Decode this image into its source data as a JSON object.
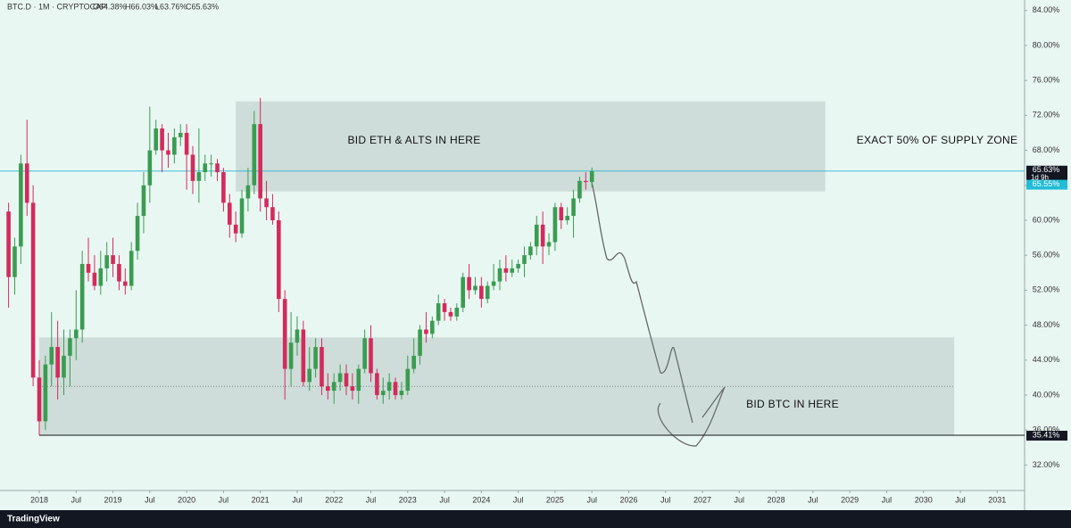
{
  "chart_data": {
    "type": "candlestick",
    "title": "BTC.D · 1M · CRYPTOCAP",
    "ohlc_labels": [
      "O64.38%",
      "H66.03%",
      "L63.76%",
      "C65.63%"
    ],
    "footer_brand": "TradingView",
    "up_color": "#3a9c50",
    "down_color": "#d42a5c",
    "x": [
      "2017-08",
      "2017-09",
      "2017-10",
      "2017-11",
      "2017-12",
      "2018-01",
      "2018-02",
      "2018-03",
      "2018-04",
      "2018-05",
      "2018-06",
      "2018-07",
      "2018-08",
      "2018-09",
      "2018-10",
      "2018-11",
      "2018-12",
      "2019-01",
      "2019-02",
      "2019-03",
      "2019-04",
      "2019-05",
      "2019-06",
      "2019-07",
      "2019-08",
      "2019-09",
      "2019-10",
      "2019-11",
      "2019-12",
      "2020-01",
      "2020-02",
      "2020-03",
      "2020-04",
      "2020-05",
      "2020-06",
      "2020-07",
      "2020-08",
      "2020-09",
      "2020-10",
      "2020-11",
      "2020-12",
      "2021-01",
      "2021-02",
      "2021-03",
      "2021-04",
      "2021-05",
      "2021-06",
      "2021-07",
      "2021-08",
      "2021-09",
      "2021-10",
      "2021-11",
      "2021-12",
      "2022-01",
      "2022-02",
      "2022-03",
      "2022-04",
      "2022-05",
      "2022-06",
      "2022-07",
      "2022-08",
      "2022-09",
      "2022-10",
      "2022-11",
      "2022-12",
      "2023-01",
      "2023-02",
      "2023-03",
      "2023-04",
      "2023-05",
      "2023-06",
      "2023-07",
      "2023-08",
      "2023-09",
      "2023-10",
      "2023-11",
      "2023-12",
      "2024-01",
      "2024-02",
      "2024-03",
      "2024-04",
      "2024-05",
      "2024-06",
      "2024-07",
      "2024-08",
      "2024-09",
      "2024-10",
      "2024-11",
      "2024-12",
      "2025-01",
      "2025-02",
      "2025-03",
      "2025-04",
      "2025-05",
      "2025-06",
      "2025-07"
    ],
    "open": [
      61.0,
      53.5,
      57.0,
      66.5,
      62.0,
      42.0,
      37.0,
      43.5,
      45.5,
      42.0,
      44.5,
      46.5,
      47.5,
      55.0,
      54.0,
      52.5,
      54.5,
      56.0,
      55.0,
      53.0,
      52.5,
      56.5,
      60.5,
      64.0,
      68.0,
      70.5,
      68.0,
      67.5,
      69.5,
      70.0,
      67.5,
      64.5,
      65.5,
      66.5,
      66.5,
      65.5,
      62.0,
      59.5,
      58.5,
      62.5,
      64.0,
      71.0,
      62.5,
      61.5,
      60.0,
      51.0,
      43.0,
      46.0,
      47.5,
      41.5,
      43.0,
      45.5,
      41.0,
      40.5,
      41.5,
      42.5,
      41.0,
      40.5,
      43.0,
      46.5,
      42.5,
      40.0,
      40.5,
      41.5,
      40.0,
      40.5,
      43.0,
      44.5,
      47.5,
      47.0,
      48.5,
      50.5,
      49.5,
      49.0,
      50.0,
      53.5,
      52.0,
      52.5,
      51.0,
      52.5,
      53.0,
      54.5,
      54.0,
      54.5,
      55.0,
      56.0,
      57.0,
      59.5,
      57.0,
      57.5,
      61.5,
      60.0,
      60.5,
      62.5,
      64.5,
      64.38
    ],
    "high": [
      62.0,
      58.0,
      67.5,
      71.5,
      64.0,
      44.0,
      44.5,
      49.5,
      48.5,
      47.5,
      47.5,
      52.0,
      56.5,
      58.0,
      56.0,
      56.5,
      57.5,
      58.0,
      56.0,
      54.5,
      57.5,
      62.0,
      65.5,
      73.0,
      71.5,
      71.0,
      70.0,
      70.5,
      71.0,
      71.0,
      68.5,
      70.5,
      67.5,
      67.5,
      67.0,
      66.0,
      63.0,
      61.0,
      63.5,
      66.0,
      72.5,
      74.0,
      64.5,
      63.0,
      61.0,
      52.0,
      49.5,
      49.0,
      48.5,
      45.5,
      46.5,
      46.5,
      42.5,
      42.5,
      43.5,
      43.5,
      42.5,
      43.5,
      47.5,
      48.0,
      43.0,
      42.0,
      42.5,
      42.0,
      41.5,
      44.5,
      46.5,
      48.0,
      49.5,
      49.0,
      51.5,
      51.0,
      50.0,
      50.5,
      54.0,
      55.0,
      53.5,
      53.5,
      53.0,
      55.0,
      55.5,
      56.0,
      55.5,
      55.5,
      57.0,
      57.5,
      60.5,
      61.0,
      58.5,
      62.0,
      62.0,
      61.5,
      63.5,
      65.0,
      65.5,
      66.03
    ],
    "low": [
      50.0,
      51.5,
      55.0,
      60.5,
      41.0,
      35.41,
      36.0,
      41.0,
      39.5,
      40.0,
      41.0,
      44.0,
      46.0,
      53.0,
      52.0,
      51.5,
      53.0,
      53.5,
      52.0,
      51.5,
      52.0,
      55.5,
      58.5,
      62.0,
      67.5,
      65.5,
      66.0,
      66.5,
      68.5,
      63.5,
      63.0,
      62.0,
      64.5,
      65.0,
      64.5,
      61.0,
      58.0,
      57.5,
      58.0,
      61.0,
      63.0,
      61.0,
      60.0,
      59.5,
      49.5,
      39.5,
      41.0,
      44.5,
      41.0,
      40.5,
      42.0,
      40.0,
      39.5,
      39.0,
      40.5,
      40.0,
      39.5,
      39.0,
      42.5,
      41.5,
      39.5,
      39.0,
      39.5,
      39.5,
      39.5,
      40.0,
      42.5,
      43.5,
      46.0,
      46.5,
      48.0,
      48.5,
      48.5,
      48.5,
      49.5,
      51.0,
      51.5,
      50.0,
      50.5,
      52.0,
      52.0,
      53.0,
      53.5,
      54.0,
      53.5,
      55.5,
      56.0,
      55.0,
      56.0,
      56.5,
      59.0,
      59.5,
      58.0,
      62.0,
      63.5,
      63.76
    ],
    "close": [
      53.5,
      57.0,
      66.5,
      62.0,
      42.0,
      37.0,
      43.5,
      45.5,
      42.0,
      44.5,
      46.5,
      47.5,
      55.0,
      54.0,
      52.5,
      54.5,
      56.0,
      55.0,
      53.0,
      52.5,
      56.5,
      60.5,
      64.0,
      68.0,
      70.5,
      68.0,
      67.5,
      69.5,
      70.0,
      67.5,
      64.5,
      65.5,
      66.5,
      66.5,
      65.5,
      62.0,
      59.5,
      58.5,
      62.5,
      64.0,
      71.0,
      62.5,
      61.5,
      60.0,
      51.0,
      43.0,
      46.0,
      47.5,
      41.5,
      43.0,
      45.5,
      41.0,
      40.5,
      41.5,
      42.5,
      41.0,
      40.5,
      43.0,
      46.5,
      42.5,
      40.0,
      40.5,
      41.5,
      40.0,
      40.5,
      43.0,
      44.5,
      47.5,
      47.0,
      48.5,
      50.5,
      49.5,
      49.0,
      50.0,
      53.5,
      52.0,
      52.5,
      51.0,
      52.5,
      53.0,
      54.5,
      54.0,
      54.5,
      55.0,
      56.0,
      57.0,
      59.5,
      57.0,
      57.5,
      61.5,
      60.0,
      60.5,
      62.5,
      64.5,
      64.38,
      65.63
    ],
    "ylim": [
      30.1,
      85.2
    ],
    "yticks": [
      {
        "value": 32,
        "label": "32.00%"
      },
      {
        "value": 36,
        "label": "36.00%"
      },
      {
        "value": 40,
        "label": "40.00%"
      },
      {
        "value": 44,
        "label": "44.00%"
      },
      {
        "value": 48,
        "label": "48.00%"
      },
      {
        "value": 52,
        "label": "52.00%"
      },
      {
        "value": 56,
        "label": "56.00%"
      },
      {
        "value": 60,
        "label": "60.00%"
      },
      {
        "value": 64,
        "label": "64.00%"
      },
      {
        "value": 68,
        "label": "68.00%"
      },
      {
        "value": 72,
        "label": "72.00%"
      },
      {
        "value": 76,
        "label": "76.00%"
      },
      {
        "value": 80,
        "label": "80.00%"
      },
      {
        "value": 84,
        "label": "84.00%"
      }
    ],
    "xticks": [
      {
        "value": "2018-01",
        "label": "2018"
      },
      {
        "value": "2018-07",
        "label": "Jul"
      },
      {
        "value": "2019-01",
        "label": "2019"
      },
      {
        "value": "2019-07",
        "label": "Jul"
      },
      {
        "value": "2020-01",
        "label": "2020"
      },
      {
        "value": "2020-07",
        "label": "Jul"
      },
      {
        "value": "2021-01",
        "label": "2021"
      },
      {
        "value": "2021-07",
        "label": "Jul"
      },
      {
        "value": "2022-01",
        "label": "2022"
      },
      {
        "value": "2022-07",
        "label": "Jul"
      },
      {
        "value": "2023-01",
        "label": "2023"
      },
      {
        "value": "2023-07",
        "label": "Jul"
      },
      {
        "value": "2024-01",
        "label": "2024"
      },
      {
        "value": "2024-07",
        "label": "Jul"
      },
      {
        "value": "2025-01",
        "label": "2025"
      },
      {
        "value": "2025-07",
        "label": "Jul"
      },
      {
        "value": "2026-01",
        "label": "2026"
      },
      {
        "value": "2026-07",
        "label": "Jul"
      },
      {
        "value": "2027-01",
        "label": "2027"
      },
      {
        "value": "2027-07",
        "label": "Jul"
      },
      {
        "value": "2028-01",
        "label": "2028"
      },
      {
        "value": "2028-07",
        "label": "Jul"
      },
      {
        "value": "2029-01",
        "label": "2029"
      },
      {
        "value": "2029-07",
        "label": "Jul"
      },
      {
        "value": "2030-01",
        "label": "2030"
      },
      {
        "value": "2030-07",
        "label": "Jul"
      },
      {
        "value": "2031-01",
        "label": "2031"
      }
    ],
    "zones": [
      {
        "label": "BID ETH & ALTS IN HERE",
        "top": 73.6,
        "bottom": 63.3,
        "start": "2020-09",
        "end": "2028-09"
      },
      {
        "label": "BID BTC IN HERE",
        "top": 46.6,
        "bottom": 35.41,
        "start": "2018-01",
        "end": "2030-06",
        "midline": 41.0
      }
    ],
    "annotation": "EXACT 50% OF SUPPLY ZONE",
    "last_price": {
      "label": "65.63%",
      "countdown": "1d 9h"
    },
    "mark_price": {
      "value": 65.55,
      "label": "65.55%"
    },
    "support": {
      "value": 35.41,
      "label": "35.41%"
    }
  }
}
